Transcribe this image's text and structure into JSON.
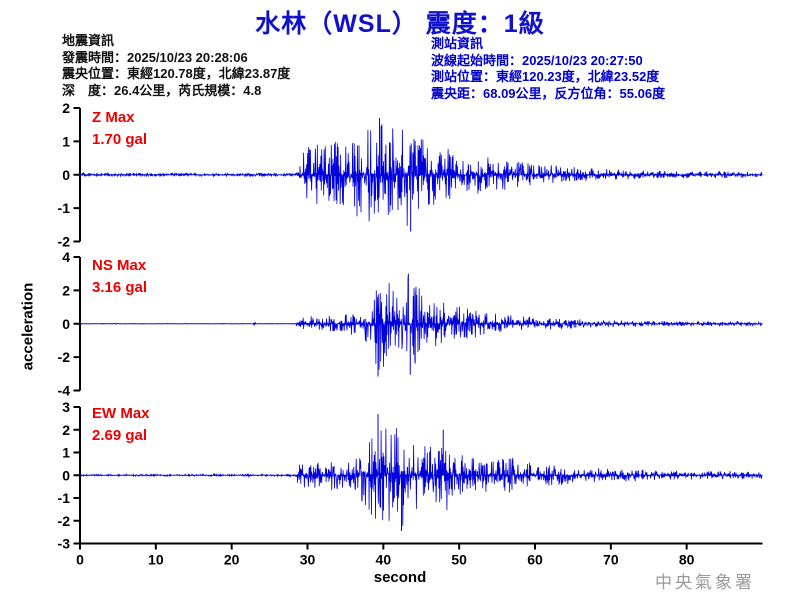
{
  "header": {
    "title": "水林（WSL） 震度：1級"
  },
  "quake_info": {
    "heading": "地震資訊",
    "lines": [
      "發震時間：2025/10/23 20:28:06",
      "震央位置：東經120.78度，北緯23.87度",
      "深　度：26.4公里，芮氏規模：4.8"
    ]
  },
  "station_info": {
    "heading": "測站資訊",
    "lines": [
      "波線起始時間：2025/10/23 20:27:50",
      "測站位置：東經120.23度，北緯23.52度",
      "震央距：68.09公里，反方位角：55.06度"
    ]
  },
  "footer": {
    "watermark": "中央氣象署"
  },
  "colors": {
    "title": "#1111cc",
    "station_info": "#0000cc",
    "max_label": "#ee0000",
    "waveform": "#0000dd",
    "watermark": "#9b9b9b",
    "axis": "#000000"
  },
  "chart_data": {
    "type": "line",
    "title": "水林（WSL） 震度：1級",
    "xlabel": "second",
    "ylabel": "acceleration",
    "x_range": [
      0,
      90
    ],
    "x_ticks": [
      0,
      10,
      20,
      30,
      40,
      50,
      60,
      70,
      80
    ],
    "grid": false,
    "legend": null,
    "line_color": "#0000dd",
    "p_wave_arrival_s": 28.5,
    "channels": [
      {
        "name": "Z",
        "max_label": "Z Max",
        "max_text": "1.70 gal",
        "max_gal": 1.7,
        "ylim": [
          -2,
          2
        ],
        "y_ticks": [
          2,
          1,
          0,
          -1,
          -2
        ],
        "envelope": [
          [
            0,
            0.055
          ],
          [
            28.4,
            0.055
          ],
          [
            28.7,
            0.85
          ],
          [
            31,
            0.9
          ],
          [
            34,
            1.0
          ],
          [
            37,
            1.3
          ],
          [
            39.5,
            1.7
          ],
          [
            41,
            1.5
          ],
          [
            43.6,
            1.6
          ],
          [
            45,
            1.1
          ],
          [
            47,
            0.9
          ],
          [
            50,
            0.68
          ],
          [
            53,
            0.55
          ],
          [
            56,
            0.45
          ],
          [
            60,
            0.34
          ],
          [
            65,
            0.24
          ],
          [
            70,
            0.17
          ],
          [
            75,
            0.13
          ],
          [
            80,
            0.11
          ],
          [
            90,
            0.09
          ]
        ],
        "spikes": [
          [
            39.5,
            1.7
          ],
          [
            43.6,
            -1.7
          ]
        ]
      },
      {
        "name": "NS",
        "max_label": "NS Max",
        "max_text": "3.16 gal",
        "max_gal": 3.16,
        "ylim": [
          -4,
          4
        ],
        "y_ticks": [
          4,
          2,
          0,
          -2,
          -4
        ],
        "envelope": [
          [
            0,
            0.02
          ],
          [
            22.8,
            0.02
          ],
          [
            23,
            0.1
          ],
          [
            23.3,
            0.02
          ],
          [
            28.4,
            0.02
          ],
          [
            28.7,
            0.4
          ],
          [
            32,
            0.5
          ],
          [
            35,
            0.6
          ],
          [
            37,
            0.9
          ],
          [
            38.5,
            1.8
          ],
          [
            39.3,
            3.0
          ],
          [
            40.5,
            2.4
          ],
          [
            43.4,
            3.0
          ],
          [
            45,
            2.0
          ],
          [
            47,
            1.5
          ],
          [
            49,
            1.2
          ],
          [
            52,
            0.85
          ],
          [
            55,
            0.6
          ],
          [
            58,
            0.45
          ],
          [
            62,
            0.35
          ],
          [
            66,
            0.28
          ],
          [
            70,
            0.22
          ],
          [
            75,
            0.18
          ],
          [
            80,
            0.15
          ],
          [
            90,
            0.12
          ]
        ],
        "spikes": [
          [
            39.3,
            -3.16
          ],
          [
            43.3,
            3.0
          ],
          [
            43.55,
            -3.05
          ]
        ]
      },
      {
        "name": "EW",
        "max_label": "EW Max",
        "max_text": "2.69 gal",
        "max_gal": 2.69,
        "ylim": [
          -3,
          3
        ],
        "y_ticks": [
          3,
          2,
          1,
          0,
          -1,
          -2,
          -3
        ],
        "envelope": [
          [
            0,
            0.035
          ],
          [
            15,
            0.045
          ],
          [
            28.4,
            0.05
          ],
          [
            28.7,
            0.55
          ],
          [
            31,
            0.6
          ],
          [
            34,
            0.7
          ],
          [
            36.5,
            0.85
          ],
          [
            38,
            1.6
          ],
          [
            39.3,
            2.6
          ],
          [
            41,
            2.0
          ],
          [
            43,
            2.3
          ],
          [
            45,
            1.5
          ],
          [
            46.5,
            1.2
          ],
          [
            47.9,
            1.9
          ],
          [
            49,
            1.1
          ],
          [
            52,
            0.8
          ],
          [
            55,
            0.68
          ],
          [
            57,
            0.8
          ],
          [
            60,
            0.5
          ],
          [
            64,
            0.4
          ],
          [
            68,
            0.33
          ],
          [
            72,
            0.28
          ],
          [
            78,
            0.22
          ],
          [
            84,
            0.19
          ],
          [
            90,
            0.17
          ]
        ],
        "spikes": [
          [
            39.3,
            2.69
          ],
          [
            42.4,
            -2.45
          ],
          [
            47.9,
            2.0
          ]
        ]
      }
    ]
  }
}
